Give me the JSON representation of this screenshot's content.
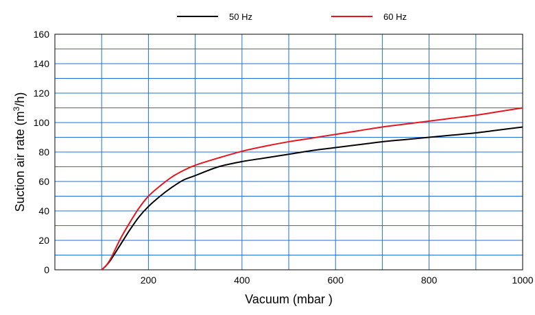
{
  "chart_data": {
    "type": "line",
    "xlabel": "Vacuum (mbar )",
    "ylabel": "Suction air rate (m",
    "ylabel_sup": "3",
    "ylabel_tail": "/h)",
    "xlim": [
      0,
      1000
    ],
    "ylim": [
      0,
      160
    ],
    "x_ticks": [
      200,
      400,
      600,
      800,
      1000
    ],
    "x_tick_labels": [
      "200",
      "400",
      "600",
      "800",
      "1000"
    ],
    "y_ticks": [
      0,
      20,
      40,
      60,
      80,
      100,
      120,
      140,
      160
    ],
    "y_tick_labels": [
      "0",
      "20",
      "40",
      "60",
      "80",
      "100",
      "120",
      "140",
      "160"
    ],
    "x_grid_step": 100,
    "y_grid_step": 10,
    "grid": true,
    "grid_color": "#1f6fd6",
    "legend_position": "top",
    "series": [
      {
        "name": "50 Hz",
        "color": "#000000",
        "x": [
          100,
          110,
          120,
          140,
          160,
          180,
          200,
          225,
          250,
          275,
          300,
          350,
          400,
          450,
          500,
          550,
          600,
          650,
          700,
          750,
          800,
          850,
          900,
          950,
          1000
        ],
        "y": [
          0,
          3,
          7,
          17,
          27,
          36,
          43,
          50,
          56,
          61,
          64,
          70,
          73.5,
          76,
          78.5,
          81,
          83,
          85,
          87,
          88.5,
          90,
          91.5,
          93,
          95,
          97
        ]
      },
      {
        "name": "60 Hz",
        "color": "#e8141b",
        "x": [
          100,
          110,
          120,
          140,
          160,
          180,
          200,
          225,
          250,
          275,
          300,
          350,
          400,
          450,
          500,
          550,
          600,
          650,
          700,
          750,
          800,
          850,
          900,
          950,
          1000
        ],
        "y": [
          0,
          3,
          8,
          21,
          32,
          42,
          50,
          57,
          63,
          67.5,
          71,
          76,
          80.5,
          84,
          87,
          89.5,
          92,
          94.5,
          97,
          99,
          101,
          103,
          105,
          107.5,
          110
        ]
      }
    ]
  }
}
